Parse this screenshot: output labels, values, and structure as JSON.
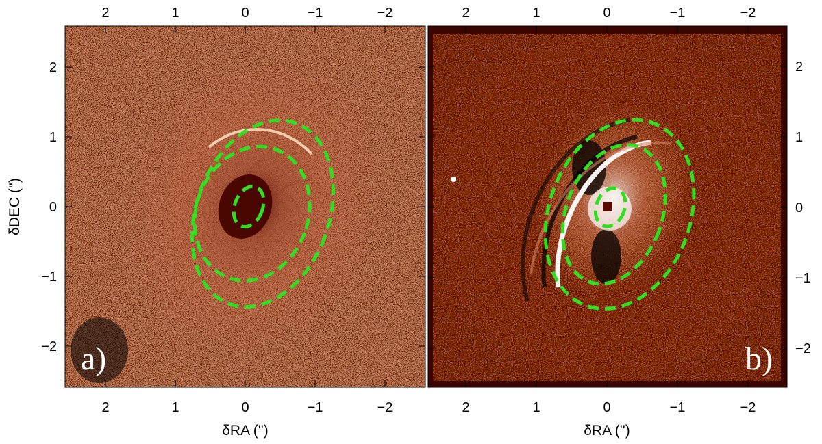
{
  "figure": {
    "panels": [
      {
        "label": "a)",
        "description": "",
        "x_ticks": [
          2,
          1,
          0,
          -1,
          -2
        ],
        "x_tick_labels": [
          "2",
          "1",
          "0",
          "−1",
          "−2"
        ],
        "y_ticks": [
          2,
          1,
          0,
          -1,
          -2
        ],
        "y_tick_labels": [
          "2",
          "1",
          "0",
          "−1",
          "−2"
        ],
        "xlabel": "δRA ('')",
        "ylabel": "δDEC ('')",
        "ellipses": [
          {
            "cx": -0.25,
            "cy": -0.1,
            "rx": 0.95,
            "ry": 1.38,
            "rot": 20
          },
          {
            "cx": -0.1,
            "cy": -0.1,
            "rx": 0.8,
            "ry": 0.98,
            "rot": 20
          },
          {
            "cx": -0.05,
            "cy": 0.0,
            "rx": 0.2,
            "ry": 0.3,
            "rot": 20
          }
        ]
      },
      {
        "label": "b)",
        "x_ticks": [
          2,
          1,
          0,
          -1,
          -2
        ],
        "x_tick_labels": [
          "2",
          "1",
          "0",
          "−1",
          "−2"
        ],
        "y_ticks": [
          2,
          1,
          0,
          -1,
          -2
        ],
        "y_tick_labels": [
          "2",
          "1",
          "0",
          "−1",
          "−2"
        ],
        "xlabel": "δRA ('')",
        "ellipses": [
          {
            "cx": -0.18,
            "cy": -0.1,
            "rx": 1.0,
            "ry": 1.38,
            "rot": 20
          },
          {
            "cx": -0.1,
            "cy": -0.1,
            "rx": 0.68,
            "ry": 1.02,
            "rot": 20
          },
          {
            "cx": -0.05,
            "cy": 0.0,
            "rx": 0.2,
            "ry": 0.28,
            "rot": 20
          }
        ]
      }
    ],
    "colors": {
      "image_dark": "#3a0500",
      "image_mid": "#8a2a10",
      "image_bright": "#f0b080",
      "ellipse": "#33dd22"
    }
  }
}
